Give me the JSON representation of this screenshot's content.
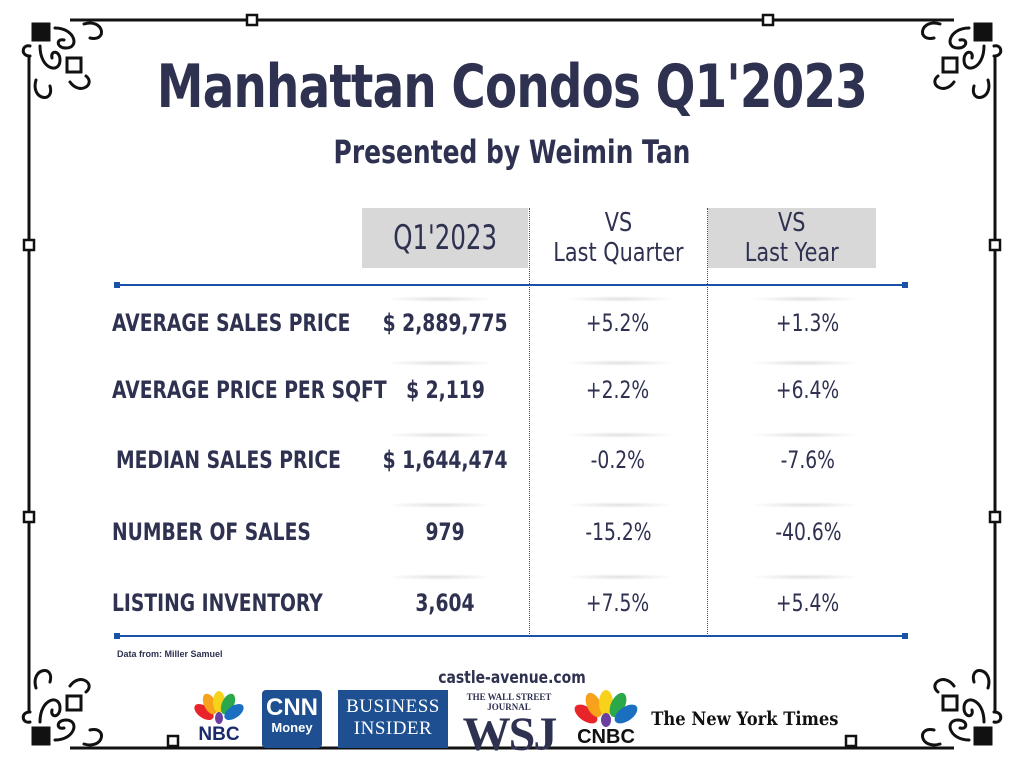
{
  "title": "Manhattan Condos Q1'2023",
  "subtitle": "Presented by Weimin Tan",
  "table": {
    "headers": {
      "current": "Q1'2023",
      "last_quarter_l1": "VS",
      "last_quarter_l2": "Last Quarter",
      "last_year_l1": "VS",
      "last_year_l2": "Last Year"
    },
    "rows": [
      {
        "label": "AVERAGE SALES PRICE",
        "value": "$ 2,889,775",
        "vs_last_quarter": "+5.2%",
        "vs_last_year": "+1.3%"
      },
      {
        "label": "AVERAGE PRICE PER SQFT",
        "value": "$ 2,119",
        "vs_last_quarter": "+2.2%",
        "vs_last_year": "+6.4%"
      },
      {
        "label": "MEDIAN SALES PRICE",
        "value": "$ 1,644,474",
        "vs_last_quarter": "-0.2%",
        "vs_last_year": "-7.6%"
      },
      {
        "label": "NUMBER OF SALES",
        "value": "979",
        "vs_last_quarter": "-15.2%",
        "vs_last_year": "-40.6%"
      },
      {
        "label": "LISTING INVENTORY",
        "value": "3,604",
        "vs_last_quarter": "+7.5%",
        "vs_last_year": "+5.4%"
      }
    ]
  },
  "source": "Data from: Miller Samuel",
  "website": "castle-avenue.com",
  "logos": {
    "nbc": "NBC",
    "cnn_line1": "CNN",
    "cnn_line2": "Money",
    "bi_line1": "BUSINESS",
    "bi_line2": "INSIDER",
    "wsj_small": "THE WALL STREET JOURNAL",
    "wsj": "WSJ",
    "cnbc": "CNBC",
    "nyt": "The New York Times"
  },
  "colors": {
    "text": "#2e3150",
    "rule": "#1a52a8",
    "header_fill": "#d8d8d8",
    "logo_blue": "#1d4f91"
  }
}
